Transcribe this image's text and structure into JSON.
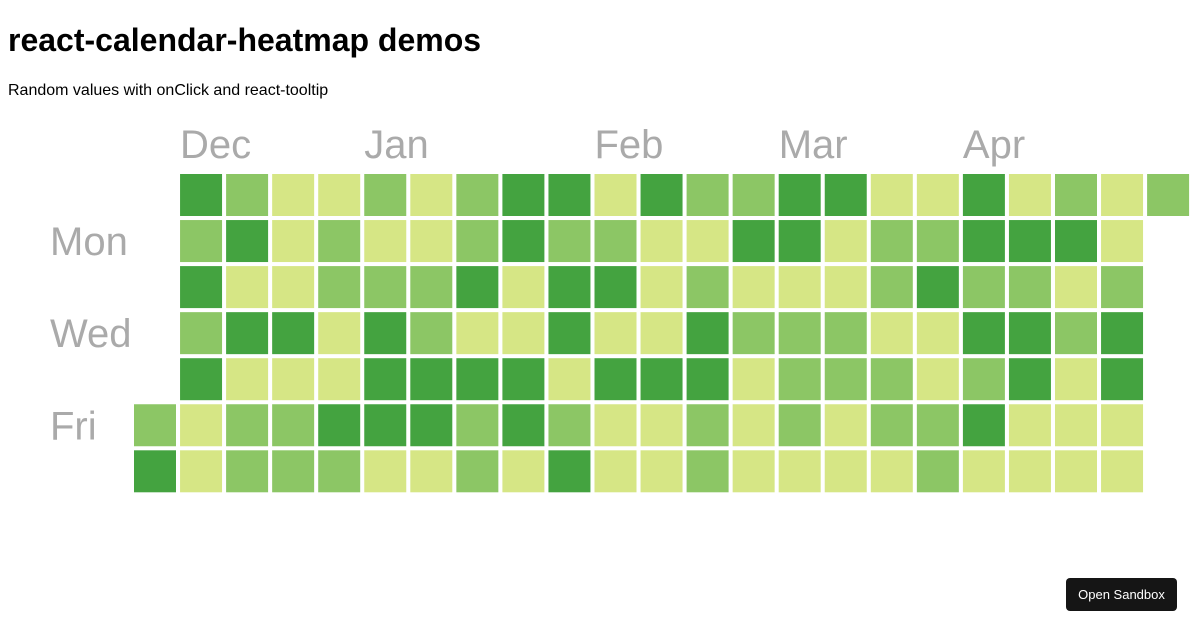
{
  "page": {
    "title": "react-calendar-heatmap demos",
    "subtitle": "Random values with onClick and react-tooltip"
  },
  "sandbox": {
    "label": "Open Sandbox"
  },
  "colors": {
    "background": "#ffffff",
    "label_text": "#aaaaaa",
    "scale": [
      "#d6e685",
      "#8cc665",
      "#44a340"
    ],
    "button_bg": "#151515",
    "button_text": "#ffffff"
  },
  "chart_data": {
    "type": "heatmap",
    "title": "",
    "month_labels": [
      {
        "label": "Dec",
        "week": 1
      },
      {
        "label": "Jan",
        "week": 5
      },
      {
        "label": "Feb",
        "week": 10
      },
      {
        "label": "Mar",
        "week": 14
      },
      {
        "label": "Apr",
        "week": 18
      }
    ],
    "weekday_labels": [
      {
        "label": "Mon",
        "day": 1
      },
      {
        "label": "Wed",
        "day": 3
      },
      {
        "label": "Fri",
        "day": 5
      }
    ],
    "levels": [
      1,
      2,
      3
    ],
    "weeks": [
      [
        null,
        null,
        null,
        null,
        null,
        2,
        3
      ],
      [
        3,
        2,
        3,
        2,
        3,
        1,
        1
      ],
      [
        2,
        3,
        1,
        3,
        1,
        2,
        2
      ],
      [
        1,
        1,
        1,
        3,
        1,
        2,
        2
      ],
      [
        1,
        2,
        2,
        1,
        1,
        3,
        2
      ],
      [
        2,
        1,
        2,
        3,
        3,
        3,
        1
      ],
      [
        1,
        1,
        2,
        2,
        3,
        3,
        1
      ],
      [
        2,
        2,
        3,
        1,
        3,
        2,
        2
      ],
      [
        3,
        3,
        1,
        1,
        3,
        3,
        1
      ],
      [
        3,
        2,
        3,
        3,
        1,
        2,
        3
      ],
      [
        1,
        2,
        3,
        1,
        3,
        1,
        1
      ],
      [
        3,
        1,
        1,
        1,
        3,
        1,
        1
      ],
      [
        2,
        1,
        2,
        3,
        3,
        2,
        2
      ],
      [
        2,
        3,
        1,
        2,
        1,
        1,
        1
      ],
      [
        3,
        3,
        1,
        2,
        2,
        2,
        1
      ],
      [
        3,
        1,
        1,
        2,
        2,
        1,
        1
      ],
      [
        1,
        2,
        2,
        1,
        2,
        2,
        1
      ],
      [
        1,
        2,
        3,
        1,
        1,
        2,
        2
      ],
      [
        3,
        3,
        2,
        3,
        2,
        3,
        1
      ],
      [
        1,
        3,
        2,
        3,
        3,
        1,
        1
      ],
      [
        2,
        3,
        1,
        2,
        1,
        1,
        1
      ],
      [
        1,
        1,
        2,
        3,
        3,
        1,
        1
      ],
      [
        2,
        null,
        null,
        null,
        null,
        null,
        null
      ]
    ]
  }
}
